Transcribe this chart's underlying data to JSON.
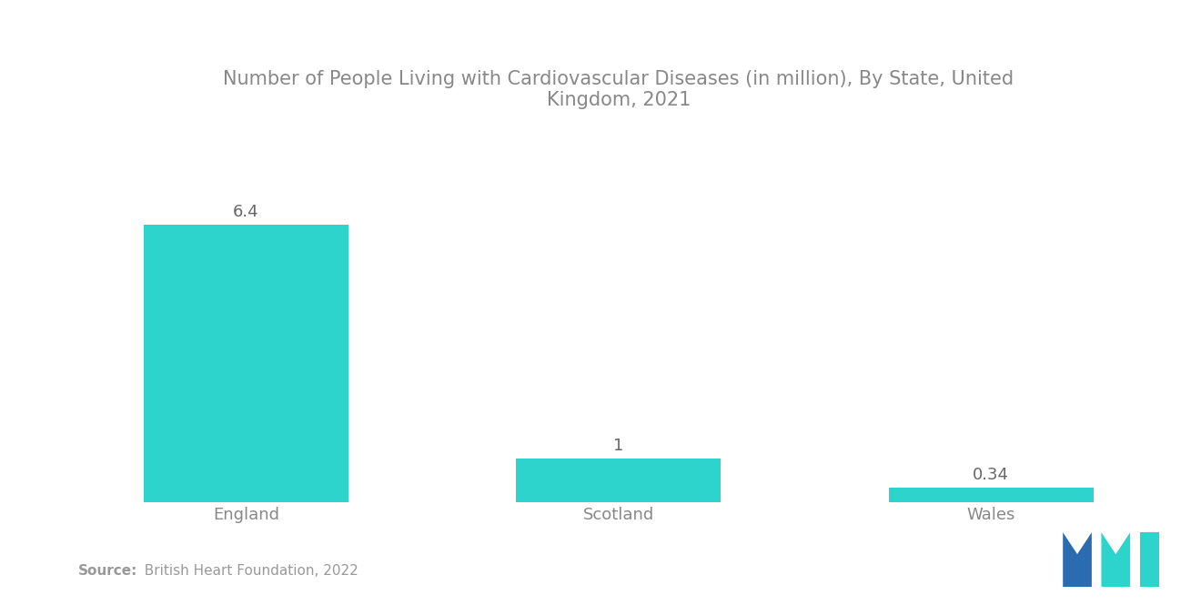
{
  "title": "Number of People Living with Cardiovascular Diseases (in million), By State, United\nKingdom, 2021",
  "categories": [
    "England",
    "Scotland",
    "Wales"
  ],
  "values": [
    6.4,
    1.0,
    0.34
  ],
  "bar_color": "#2DD4CC",
  "bar_width": 0.55,
  "value_labels": [
    "6.4",
    "1",
    "0.34"
  ],
  "source_bold": "Source:",
  "source_rest": "  British Heart Foundation, 2022",
  "background_color": "#ffffff",
  "title_color": "#888888",
  "label_color": "#888888",
  "value_color": "#666666",
  "source_color": "#999999",
  "ylim": [
    0,
    8.5
  ],
  "title_fontsize": 15,
  "label_fontsize": 13,
  "value_fontsize": 13,
  "source_fontsize": 11,
  "logo_dark_blue": "#2B6CB0",
  "logo_teal": "#2DD4CC"
}
